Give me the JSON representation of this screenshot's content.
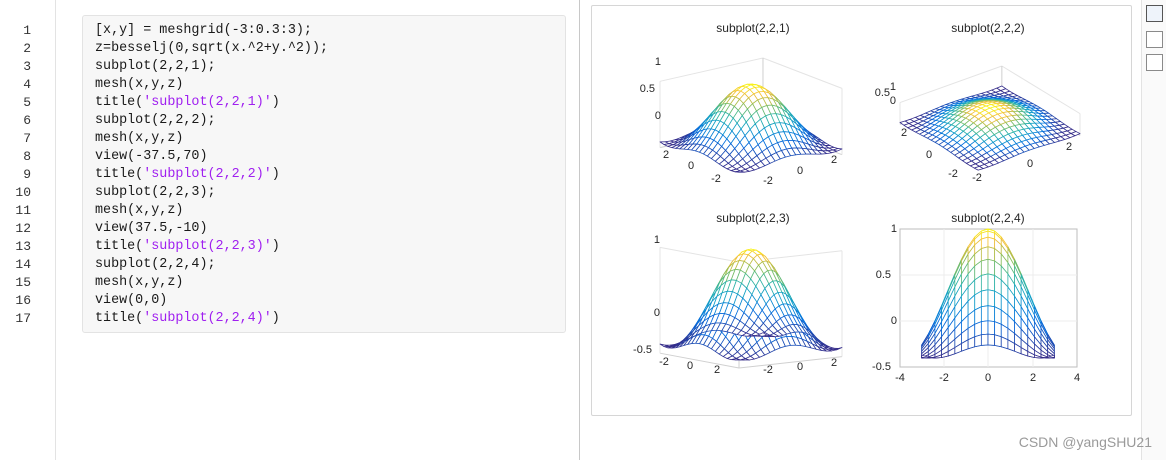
{
  "editor": {
    "lines": [
      {
        "number": 1,
        "code": [
          "[x,y] = meshgrid(-3:0.3:3);"
        ]
      },
      {
        "number": 2,
        "code": [
          "z=besselj(0,sqrt(x.^2+y.^2));"
        ]
      },
      {
        "number": 3,
        "code": [
          "subplot(2,2,1);"
        ]
      },
      {
        "number": 4,
        "code": [
          "mesh(x,y,z)"
        ]
      },
      {
        "number": 5,
        "code": [
          "title(",
          "'subplot(2,2,1)'",
          ")"
        ]
      },
      {
        "number": 6,
        "code": [
          "subplot(2,2,2);"
        ]
      },
      {
        "number": 7,
        "code": [
          "mesh(x,y,z)"
        ]
      },
      {
        "number": 8,
        "code": [
          "view(-37.5,70)"
        ]
      },
      {
        "number": 9,
        "code": [
          "title(",
          "'subplot(2,2,2)'",
          ")"
        ]
      },
      {
        "number": 10,
        "code": [
          "subplot(2,2,3);"
        ]
      },
      {
        "number": 11,
        "code": [
          "mesh(x,y,z)"
        ]
      },
      {
        "number": 12,
        "code": [
          "view(37.5,-10)"
        ]
      },
      {
        "number": 13,
        "code": [
          "title(",
          "'subplot(2,2,3)'",
          ")"
        ]
      },
      {
        "number": 14,
        "code": [
          "subplot(2,2,4);"
        ]
      },
      {
        "number": 15,
        "code": [
          "mesh(x,y,z)"
        ]
      },
      {
        "number": 16,
        "code": [
          "view(0,0)"
        ]
      },
      {
        "number": 17,
        "code": [
          "title(",
          "'subplot(2,2,4)'",
          ")"
        ]
      }
    ]
  },
  "figure": {
    "subplots": [
      {
        "title": "subplot(2,2,1)",
        "z_ticks": [
          "1",
          "0.5",
          "0"
        ],
        "y_ticks": [
          "2",
          "0",
          "-2"
        ],
        "x_ticks": [
          "-2",
          "0",
          "2"
        ]
      },
      {
        "title": "subplot(2,2,2)",
        "z_ticks": [
          "1",
          "0.5",
          "0"
        ],
        "y_ticks": [
          "2",
          "0",
          "-2"
        ],
        "x_ticks": [
          "-2",
          "0",
          "2"
        ]
      },
      {
        "title": "subplot(2,2,3)",
        "z_ticks": [
          "1",
          "0",
          "-0.5"
        ],
        "y_ticks": [
          "-2",
          "0",
          "2"
        ],
        "x_ticks": [
          "-2",
          "0",
          "2"
        ]
      },
      {
        "title": "subplot(2,2,4)",
        "z_ticks": [
          "1",
          "0.5",
          "0",
          "-0.5"
        ],
        "x_ticks": [
          "-4",
          "-2",
          "0",
          "2",
          "4"
        ]
      }
    ]
  },
  "watermark": "CSDN @yangSHU21"
}
